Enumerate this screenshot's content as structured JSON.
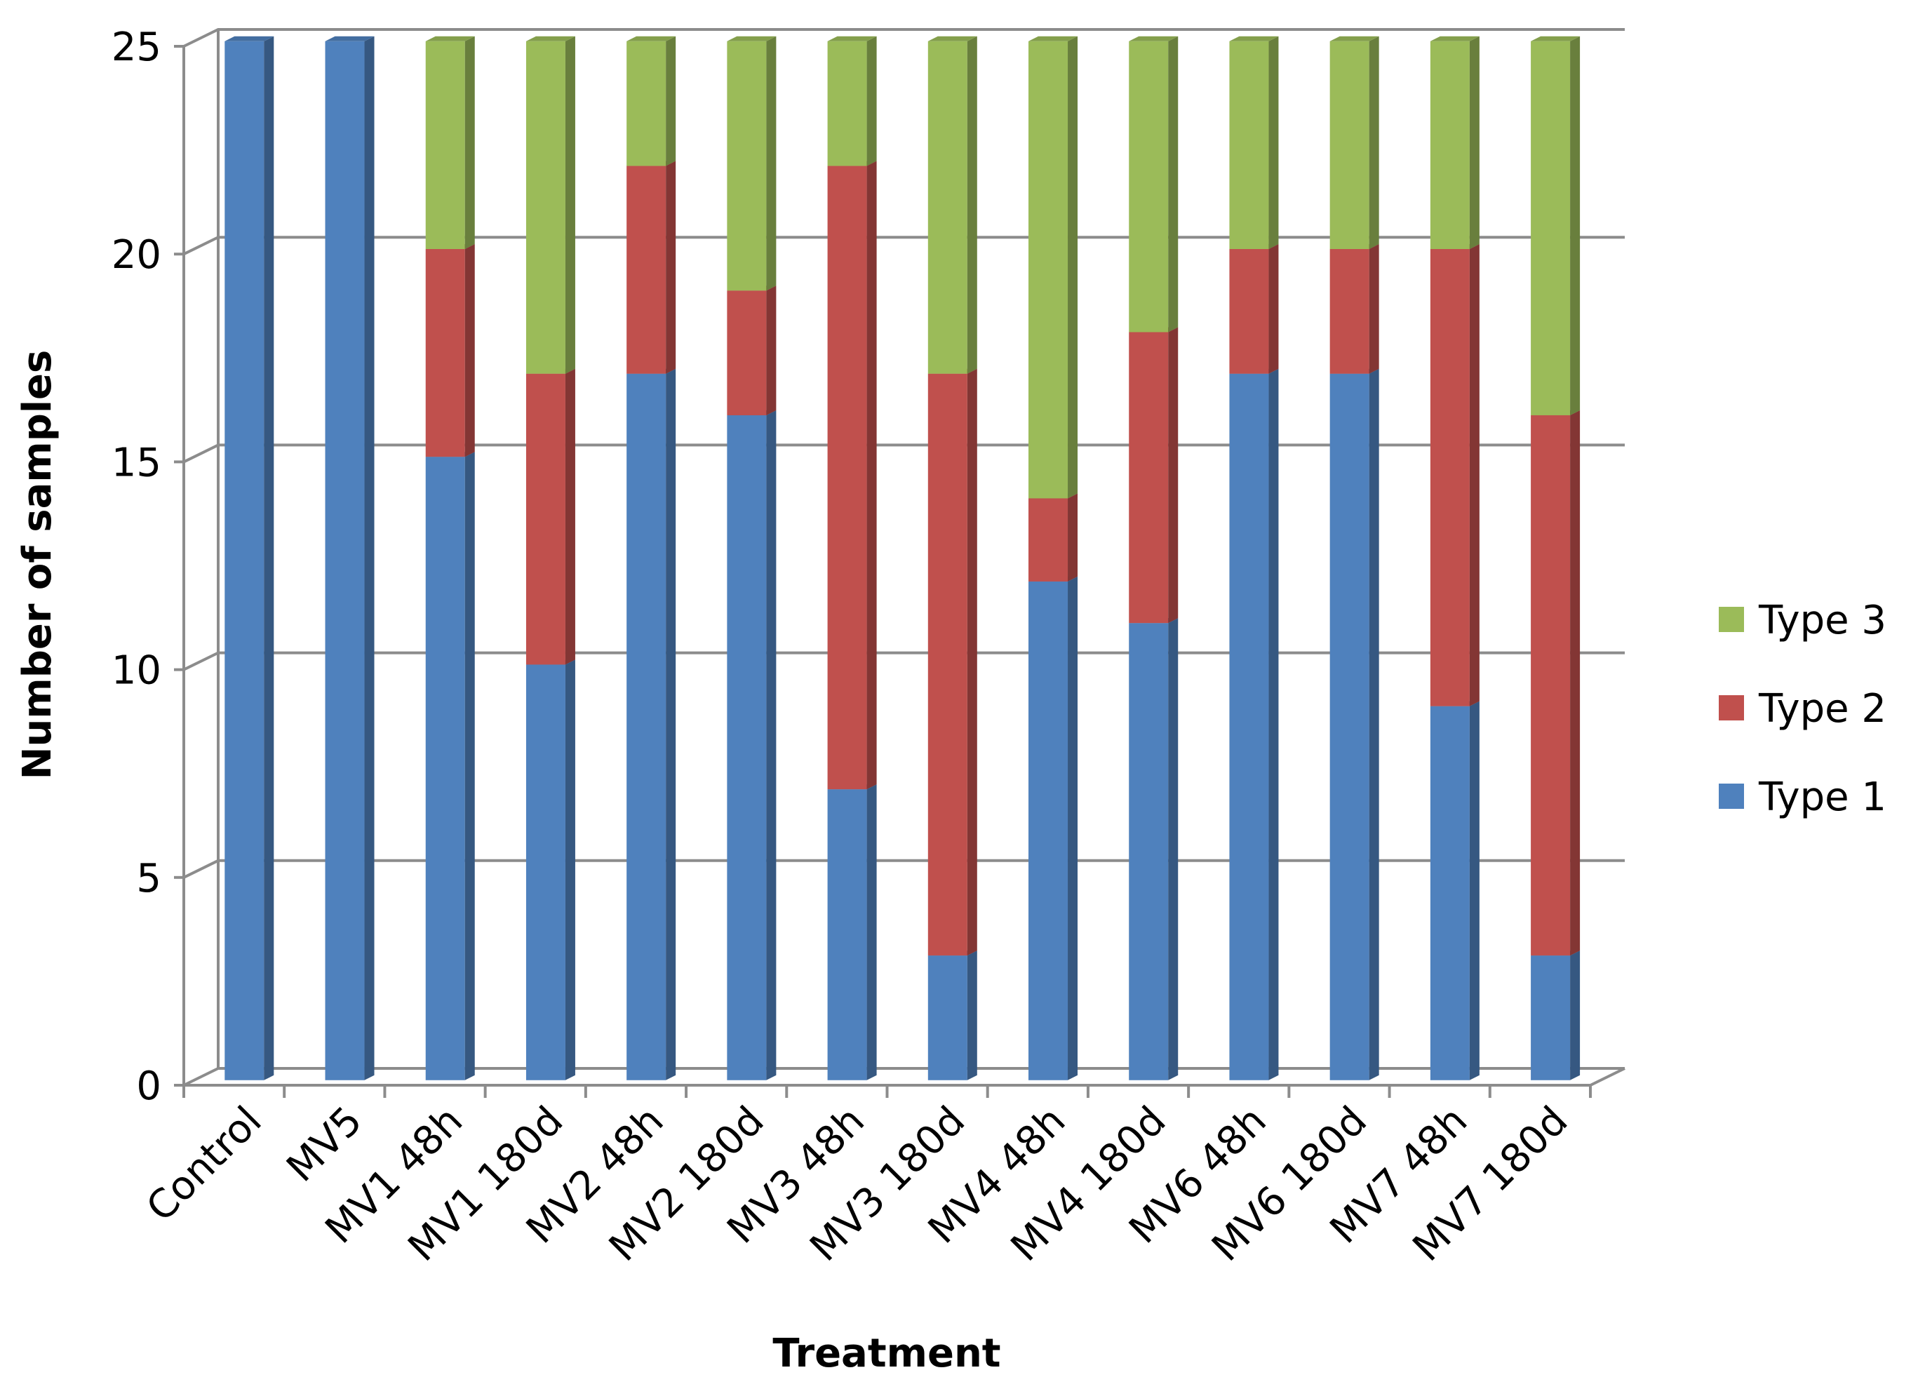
{
  "chart_data": {
    "type": "stacked-bar-3d",
    "x_label": "Treatment",
    "y_label": "Number of samples",
    "categories": [
      "Control",
      "MV5",
      "MV1 48h",
      "MV1 180d",
      "MV2 48h",
      "MV2 180d",
      "MV3 48h",
      "MV3 180d",
      "MV4 48h",
      "MV4 180d",
      "MV6 48h",
      "MV6 180d",
      "MV7 48h",
      "MV7 180d"
    ],
    "series": [
      {
        "name": "Type 1",
        "color": "#4f81bd",
        "values": [
          25,
          25,
          15,
          10,
          17,
          16,
          7,
          3,
          12,
          11,
          17,
          17,
          9,
          3
        ]
      },
      {
        "name": "Type 2",
        "color": "#c0504d",
        "values": [
          0,
          0,
          5,
          7,
          5,
          3,
          15,
          14,
          2,
          7,
          3,
          3,
          11,
          13
        ]
      },
      {
        "name": "Type 3",
        "color": "#9bbb59",
        "values": [
          0,
          0,
          5,
          8,
          3,
          6,
          3,
          8,
          11,
          7,
          5,
          5,
          5,
          9
        ]
      }
    ],
    "ylim": [
      0,
      25
    ],
    "yticks": [
      0,
      5,
      10,
      15,
      20,
      25
    ],
    "grid": true,
    "legend": "right"
  }
}
